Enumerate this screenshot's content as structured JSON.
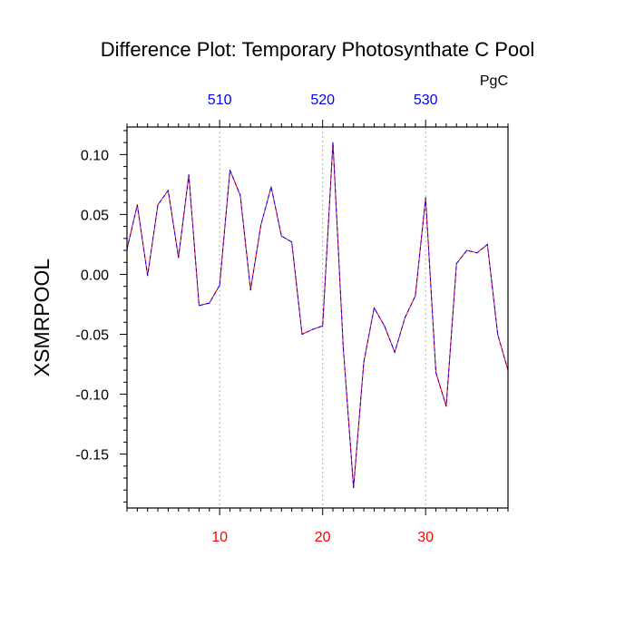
{
  "chart_data": {
    "type": "line",
    "title": "Difference Plot: Temporary Photosynthate C Pool",
    "units": "PgC",
    "ylabel": "XSMRPOOL",
    "xlabel": "",
    "xlim": [
      1,
      38
    ],
    "ylim": [
      -0.195,
      0.123
    ],
    "grid": "vertical dotted lines at major x ticks",
    "bottom_axis": {
      "ticks": [
        10,
        20,
        30
      ],
      "labels": [
        "10",
        "20",
        "30"
      ],
      "color": "#ff0000"
    },
    "top_axis": {
      "ticks": [
        10,
        20,
        30
      ],
      "labels": [
        "510",
        "520",
        "530"
      ],
      "color": "#0000ff"
    },
    "y_ticks": [
      0.1,
      0.05,
      0.0,
      -0.05,
      -0.1,
      -0.15
    ],
    "y_tick_labels": [
      "0.10",
      "0.05",
      "0.00",
      "-0.05",
      "-0.10",
      "-0.15"
    ],
    "series": [
      {
        "line_colors": [
          "#ff0000",
          "#0000ff"
        ],
        "dashed": true,
        "x": [
          1,
          2,
          3,
          4,
          5,
          6,
          7,
          8,
          9,
          10,
          11,
          12,
          13,
          14,
          15,
          16,
          17,
          18,
          19,
          20,
          21,
          22,
          23,
          24,
          25,
          26,
          27,
          28,
          29,
          30,
          31,
          32,
          33,
          34,
          35,
          36,
          37,
          38
        ],
        "values": [
          0.021,
          0.058,
          -0.001,
          0.058,
          0.07,
          0.014,
          0.083,
          -0.026,
          -0.024,
          -0.009,
          0.087,
          0.066,
          -0.013,
          0.041,
          0.073,
          0.032,
          0.027,
          -0.05,
          -0.046,
          -0.043,
          0.11,
          -0.061,
          -0.178,
          -0.073,
          -0.028,
          -0.043,
          -0.065,
          -0.036,
          -0.018,
          0.064,
          -0.082,
          -0.11,
          0.009,
          0.02,
          0.018,
          0.025,
          -0.05,
          -0.08
        ]
      }
    ]
  }
}
